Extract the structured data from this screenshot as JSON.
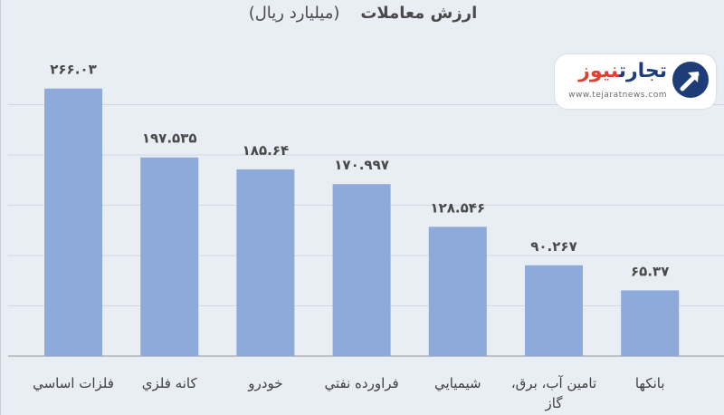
{
  "chart_data": {
    "type": "bar",
    "title": "ارزش معاملات",
    "subtitle": "(میلیارد ریال)",
    "categories": [
      "فلزات اساسي",
      "کانه فلزي",
      "خودرو",
      "فراورده نفتي",
      "شيميايي",
      "تامين آب، برق، گاز",
      "بانكها"
    ],
    "category_lines": [
      [
        "فلزات اساسي"
      ],
      [
        "کانه فلزي"
      ],
      [
        "خودرو"
      ],
      [
        "فراورده نفتي"
      ],
      [
        "شيميايي"
      ],
      [
        "تامين آب، برق،",
        "گاز"
      ],
      [
        "بانكها"
      ]
    ],
    "values": [
      266.03,
      197.535,
      185.64,
      170.997,
      128.546,
      90.267,
      65.37
    ],
    "data_labels": [
      "۲۶۶.۰۳",
      "۱۹۷.۵۳۵",
      "۱۸۵.۶۴",
      "۱۷۰.۹۹۷",
      "۱۲۸.۵۴۶",
      "۹۰.۲۶۷",
      "۶۵.۳۷"
    ],
    "ylim": [
      0,
      300
    ],
    "grid": true,
    "bar_color": "#8eaadb",
    "grid_color": "#d3d8e0",
    "axis_color": "#a6a6a6"
  },
  "logo": {
    "part1": "تجارت",
    "part2": "نیوز",
    "url": "www.tejaratnews.com",
    "icon": "arrow-up-right-icon",
    "brand_color": "#1e3c78",
    "accent_color": "#e0402e"
  }
}
